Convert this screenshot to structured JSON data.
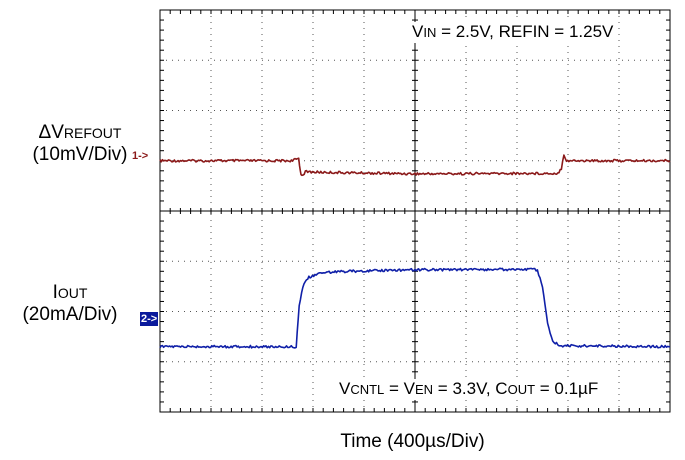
{
  "chart_data": {
    "type": "line",
    "xlabel": "Time (400µs/Div)",
    "grid": true,
    "divisions": {
      "x": 10,
      "y": 8
    },
    "series": [
      {
        "channel": "1",
        "marker": "1->",
        "label": {
          "main": "ΔV",
          "sub": "REFOUT",
          "scale": "(10mV/Div)"
        },
        "color": "#8b1a1a",
        "points_div": [
          [
            0,
            5.0
          ],
          [
            1.2,
            5.0
          ],
          [
            2.6,
            5.0
          ],
          [
            2.72,
            5.05
          ],
          [
            2.75,
            4.8
          ],
          [
            2.78,
            4.7
          ],
          [
            2.85,
            4.78
          ],
          [
            3.2,
            4.77
          ],
          [
            5.0,
            4.74
          ],
          [
            7.8,
            4.75
          ],
          [
            7.87,
            4.85
          ],
          [
            7.92,
            5.13
          ],
          [
            7.97,
            5.0
          ],
          [
            8.5,
            5.0
          ],
          [
            10,
            5.0
          ]
        ]
      },
      {
        "channel": "2",
        "marker": "2->",
        "label": {
          "main": "I",
          "sub": "OUT",
          "scale": "(20mA/Div)"
        },
        "color": "#1020a8",
        "points_div": [
          [
            0,
            1.3
          ],
          [
            2.67,
            1.3
          ],
          [
            2.69,
            1.6
          ],
          [
            2.73,
            2.1
          ],
          [
            2.8,
            2.5
          ],
          [
            2.92,
            2.68
          ],
          [
            3.2,
            2.78
          ],
          [
            4,
            2.81
          ],
          [
            5,
            2.83
          ],
          [
            7.3,
            2.84
          ],
          [
            7.4,
            2.82
          ],
          [
            7.5,
            2.5
          ],
          [
            7.6,
            1.75
          ],
          [
            7.7,
            1.4
          ],
          [
            7.85,
            1.32
          ],
          [
            10,
            1.3
          ]
        ]
      }
    ],
    "annotations": [
      {
        "id": "top",
        "parts": [
          [
            "V",
            ""
          ],
          [
            "IN",
            "sub"
          ],
          [
            " = 2.5V, REFIN = 1.25V",
            ""
          ]
        ]
      },
      {
        "id": "bottom",
        "parts": [
          [
            "V",
            ""
          ],
          [
            "CNTL",
            "sub"
          ],
          [
            " = V",
            ""
          ],
          [
            "EN",
            "sub"
          ],
          [
            " = 3.3V, C",
            ""
          ],
          [
            "OUT",
            "sub"
          ],
          [
            " = 0.1µF",
            ""
          ]
        ]
      }
    ]
  }
}
